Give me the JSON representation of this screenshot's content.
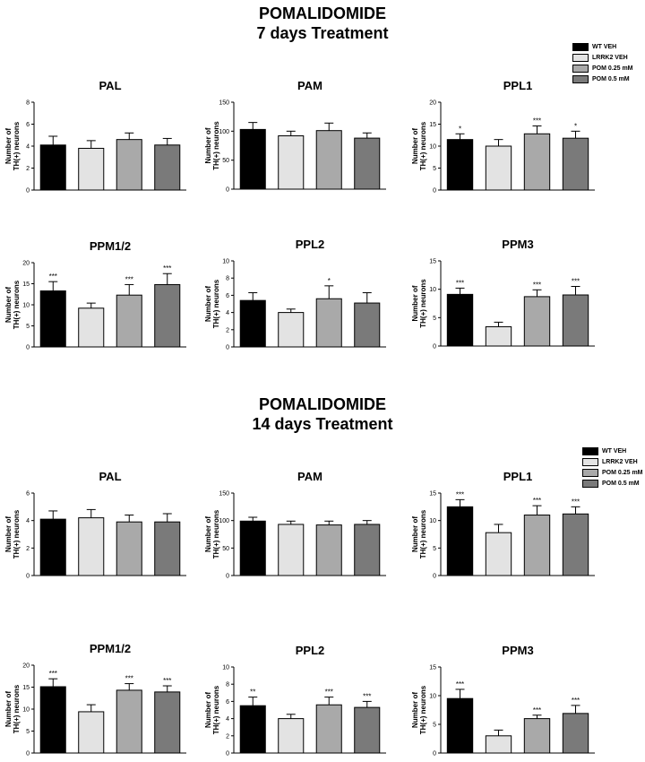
{
  "sections": [
    {
      "title_line1": "POMALIDOMIDE",
      "title_line2": "7 days Treatment"
    },
    {
      "title_line1": "POMALIDOMIDE",
      "title_line2": "14 days Treatment"
    }
  ],
  "legend": {
    "entries": [
      "WT VEH",
      "LRRK2 VEH",
      "POM 0.25 mM",
      "POM 0.5 mM"
    ],
    "colors": [
      "#000000",
      "#e3e3e3",
      "#a9a9a9",
      "#7a7a7a"
    ]
  },
  "y_label_line1": "Number of",
  "y_label_line2": "TH(+) neurons",
  "chart_data": [
    {
      "type": "bar",
      "section": "7 days Treatment",
      "title": "PAL",
      "ylim": [
        0,
        8
      ],
      "yticks": [
        0,
        2,
        4,
        6,
        8
      ],
      "series": [
        {
          "name": "WT VEH",
          "values": [
            4.1
          ]
        },
        {
          "name": "LRRK2 VEH",
          "values": [
            3.8
          ]
        },
        {
          "name": "POM 0.25 mM",
          "values": [
            4.6
          ]
        },
        {
          "name": "POM 0.5 mM",
          "values": [
            4.1
          ]
        }
      ],
      "errors": [
        0.8,
        0.7,
        0.6,
        0.6
      ],
      "significance": [
        "",
        "",
        "",
        ""
      ]
    },
    {
      "type": "bar",
      "section": "7 days Treatment",
      "title": "PAM",
      "ylim": [
        0,
        150
      ],
      "yticks": [
        0,
        50,
        100,
        150
      ],
      "series": [
        {
          "name": "WT VEH",
          "values": [
            103
          ]
        },
        {
          "name": "LRRK2 VEH",
          "values": [
            92
          ]
        },
        {
          "name": "POM 0.25 mM",
          "values": [
            101
          ]
        },
        {
          "name": "POM 0.5 mM",
          "values": [
            88
          ]
        }
      ],
      "errors": [
        12,
        8,
        13,
        9
      ],
      "significance": [
        "",
        "",
        "",
        ""
      ]
    },
    {
      "type": "bar",
      "section": "7 days Treatment",
      "title": "PPL1",
      "ylim": [
        0,
        20
      ],
      "yticks": [
        0,
        5,
        10,
        15,
        20
      ],
      "series": [
        {
          "name": "WT VEH",
          "values": [
            11.5
          ]
        },
        {
          "name": "LRRK2 VEH",
          "values": [
            10.0
          ]
        },
        {
          "name": "POM 0.25 mM",
          "values": [
            12.8
          ]
        },
        {
          "name": "POM 0.5 mM",
          "values": [
            11.8
          ]
        }
      ],
      "errors": [
        1.3,
        1.5,
        1.8,
        1.6
      ],
      "significance": [
        "*",
        "",
        "***",
        "*"
      ]
    },
    {
      "type": "bar",
      "section": "7 days Treatment",
      "title": "PPM1/2",
      "ylim": [
        0,
        20
      ],
      "yticks": [
        0,
        5,
        10,
        15,
        20
      ],
      "series": [
        {
          "name": "WT VEH",
          "values": [
            13.3
          ]
        },
        {
          "name": "LRRK2 VEH",
          "values": [
            9.2
          ]
        },
        {
          "name": "POM 0.25 mM",
          "values": [
            12.3
          ]
        },
        {
          "name": "POM 0.5 mM",
          "values": [
            14.8
          ]
        }
      ],
      "errors": [
        2.2,
        1.2,
        2.5,
        2.6
      ],
      "significance": [
        "***",
        "",
        "***",
        "***"
      ]
    },
    {
      "type": "bar",
      "section": "7 days Treatment",
      "title": "PPL2",
      "ylim": [
        0,
        10
      ],
      "yticks": [
        0,
        2,
        4,
        6,
        8,
        10
      ],
      "series": [
        {
          "name": "WT VEH",
          "values": [
            5.4
          ]
        },
        {
          "name": "LRRK2 VEH",
          "values": [
            4.0
          ]
        },
        {
          "name": "POM 0.25 mM",
          "values": [
            5.6
          ]
        },
        {
          "name": "POM 0.5 mM",
          "values": [
            5.1
          ]
        }
      ],
      "errors": [
        0.9,
        0.4,
        1.5,
        1.2
      ],
      "significance": [
        "",
        "",
        "*",
        ""
      ]
    },
    {
      "type": "bar",
      "section": "7 days Treatment",
      "title": "PPM3",
      "ylim": [
        0,
        15
      ],
      "yticks": [
        0,
        5,
        10,
        15
      ],
      "series": [
        {
          "name": "WT VEH",
          "values": [
            9.1
          ]
        },
        {
          "name": "LRRK2 VEH",
          "values": [
            3.4
          ]
        },
        {
          "name": "POM 0.25 mM",
          "values": [
            8.7
          ]
        },
        {
          "name": "POM 0.5 mM",
          "values": [
            9.0
          ]
        }
      ],
      "errors": [
        1.1,
        0.8,
        1.2,
        1.5
      ],
      "significance": [
        "***",
        "",
        "***",
        "***"
      ]
    },
    {
      "type": "bar",
      "section": "14 days Treatment",
      "title": "PAL",
      "ylim": [
        0,
        6
      ],
      "yticks": [
        0,
        2,
        4,
        6
      ],
      "series": [
        {
          "name": "WT VEH",
          "values": [
            4.1
          ]
        },
        {
          "name": "LRRK2 VEH",
          "values": [
            4.2
          ]
        },
        {
          "name": "POM 0.25 mM",
          "values": [
            3.9
          ]
        },
        {
          "name": "POM 0.5 mM",
          "values": [
            3.9
          ]
        }
      ],
      "errors": [
        0.6,
        0.6,
        0.5,
        0.6
      ],
      "significance": [
        "",
        "",
        "",
        ""
      ]
    },
    {
      "type": "bar",
      "section": "14 days Treatment",
      "title": "PAM",
      "ylim": [
        0,
        150
      ],
      "yticks": [
        0,
        50,
        100,
        150
      ],
      "series": [
        {
          "name": "WT VEH",
          "values": [
            99
          ]
        },
        {
          "name": "LRRK2 VEH",
          "values": [
            93
          ]
        },
        {
          "name": "POM 0.25 mM",
          "values": [
            92
          ]
        },
        {
          "name": "POM 0.5 mM",
          "values": [
            93
          ]
        }
      ],
      "errors": [
        7,
        6,
        7,
        7
      ],
      "significance": [
        "",
        "",
        "",
        ""
      ]
    },
    {
      "type": "bar",
      "section": "14 days Treatment",
      "title": "PPL1",
      "ylim": [
        0,
        15
      ],
      "yticks": [
        0,
        5,
        10,
        15
      ],
      "series": [
        {
          "name": "WT VEH",
          "values": [
            12.5
          ]
        },
        {
          "name": "LRRK2 VEH",
          "values": [
            7.8
          ]
        },
        {
          "name": "POM 0.25 mM",
          "values": [
            11.0
          ]
        },
        {
          "name": "POM 0.5 mM",
          "values": [
            11.2
          ]
        }
      ],
      "errors": [
        1.3,
        1.5,
        1.7,
        1.3
      ],
      "significance": [
        "***",
        "",
        "***",
        "***"
      ]
    },
    {
      "type": "bar",
      "section": "14 days Treatment",
      "title": "PPM1/2",
      "ylim": [
        0,
        20
      ],
      "yticks": [
        0,
        5,
        10,
        15,
        20
      ],
      "series": [
        {
          "name": "WT VEH",
          "values": [
            15.1
          ]
        },
        {
          "name": "LRRK2 VEH",
          "values": [
            9.4
          ]
        },
        {
          "name": "POM 0.25 mM",
          "values": [
            14.3
          ]
        },
        {
          "name": "POM 0.5 mM",
          "values": [
            13.9
          ]
        }
      ],
      "errors": [
        1.8,
        1.6,
        1.5,
        1.4
      ],
      "significance": [
        "***",
        "",
        "***",
        "***"
      ]
    },
    {
      "type": "bar",
      "section": "14 days Treatment",
      "title": "PPL2",
      "ylim": [
        0,
        10
      ],
      "yticks": [
        0,
        2,
        4,
        6,
        8,
        10
      ],
      "series": [
        {
          "name": "WT VEH",
          "values": [
            5.5
          ]
        },
        {
          "name": "LRRK2 VEH",
          "values": [
            4.0
          ]
        },
        {
          "name": "POM 0.25 mM",
          "values": [
            5.6
          ]
        },
        {
          "name": "POM 0.5 mM",
          "values": [
            5.3
          ]
        }
      ],
      "errors": [
        1.0,
        0.5,
        0.9,
        0.7
      ],
      "significance": [
        "**",
        "",
        "***",
        "***"
      ]
    },
    {
      "type": "bar",
      "section": "14 days Treatment",
      "title": "PPM3",
      "ylim": [
        0,
        15
      ],
      "yticks": [
        0,
        5,
        10,
        15
      ],
      "series": [
        {
          "name": "WT VEH",
          "values": [
            9.5
          ]
        },
        {
          "name": "LRRK2 VEH",
          "values": [
            3.0
          ]
        },
        {
          "name": "POM 0.25 mM",
          "values": [
            6.0
          ]
        },
        {
          "name": "POM 0.5 mM",
          "values": [
            6.9
          ]
        }
      ],
      "errors": [
        1.6,
        1.0,
        0.6,
        1.4
      ],
      "significance": [
        "***",
        "",
        "***",
        "***"
      ]
    }
  ]
}
